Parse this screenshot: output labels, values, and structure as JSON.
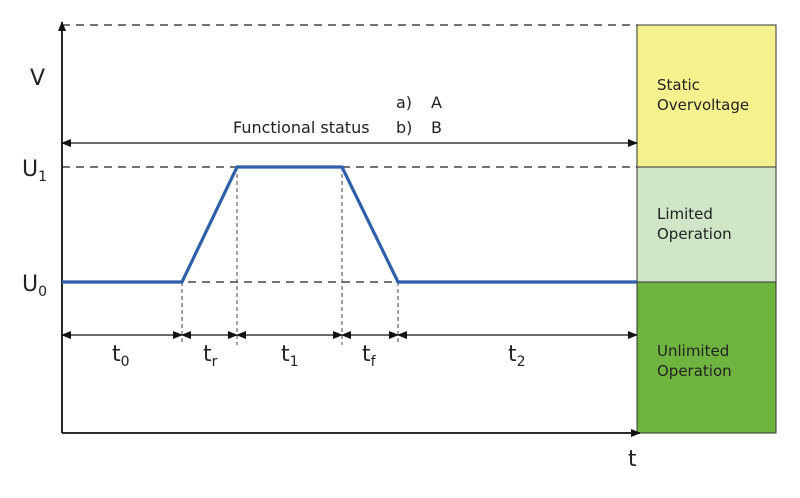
{
  "axes": {
    "y_label": "V",
    "x_label": "t"
  },
  "levels": [
    {
      "base": "U",
      "sub": "1"
    },
    {
      "base": "U",
      "sub": "0"
    }
  ],
  "intervals": [
    {
      "base": "t",
      "sub": "0"
    },
    {
      "base": "t",
      "sub": "r"
    },
    {
      "base": "t",
      "sub": "1"
    },
    {
      "base": "t",
      "sub": "f"
    },
    {
      "base": "t",
      "sub": "2"
    }
  ],
  "functional_status": {
    "label": "Functional status",
    "options": [
      {
        "key": "a)",
        "value": "A"
      },
      {
        "key": "b)",
        "value": "B"
      }
    ]
  },
  "zones": [
    {
      "lines": [
        "Static",
        "Overvoltage"
      ]
    },
    {
      "lines": [
        "Limited",
        "Operation"
      ]
    },
    {
      "lines": [
        "Unlimited",
        "Operation"
      ]
    }
  ]
}
